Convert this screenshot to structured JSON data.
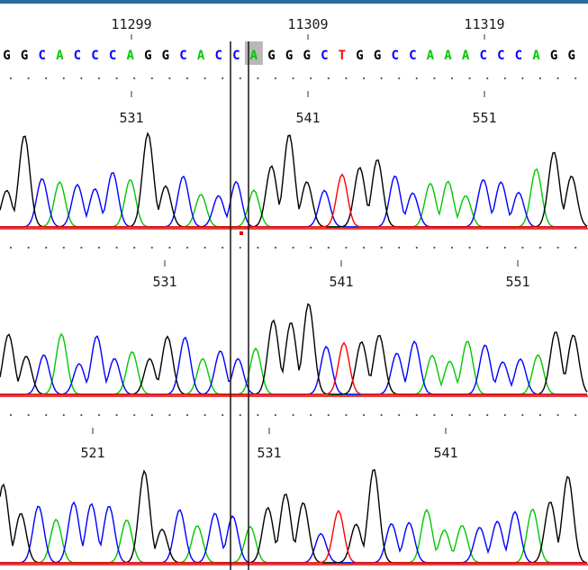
{
  "reference": {
    "ticks": [
      {
        "label": "11299",
        "pos": 0
      },
      {
        "label": "11309",
        "pos": 10
      },
      {
        "label": "11319",
        "pos": 20
      }
    ],
    "sequence": "GGCACCCAGGCACCAGGGCTGGCCAAACCCAGG",
    "highlight_index": 14
  },
  "tracks": [
    {
      "ticks": [
        {
          "label": "531",
          "pos": 0
        },
        {
          "label": "541",
          "pos": 10
        },
        {
          "label": "551",
          "pos": 20
        }
      ]
    },
    {
      "ticks": [
        {
          "label": "531",
          "pos": 2
        },
        {
          "label": "541",
          "pos": 12
        },
        {
          "label": "551",
          "pos": 22
        }
      ]
    },
    {
      "ticks": [
        {
          "label": "521",
          "pos": -2
        },
        {
          "label": "531",
          "pos": 8
        },
        {
          "label": "541",
          "pos": 18
        }
      ]
    }
  ],
  "colors": {
    "A": "#00c800",
    "C": "#0000ff",
    "G": "#000000",
    "T": "#ff0000",
    "cursor_highlight": "#b8b8b8",
    "top_border": "#2f6b9a"
  },
  "peak_calls": "GGCACCCAGGCACCAGGGCTGGCCAAACCCAGG"
}
